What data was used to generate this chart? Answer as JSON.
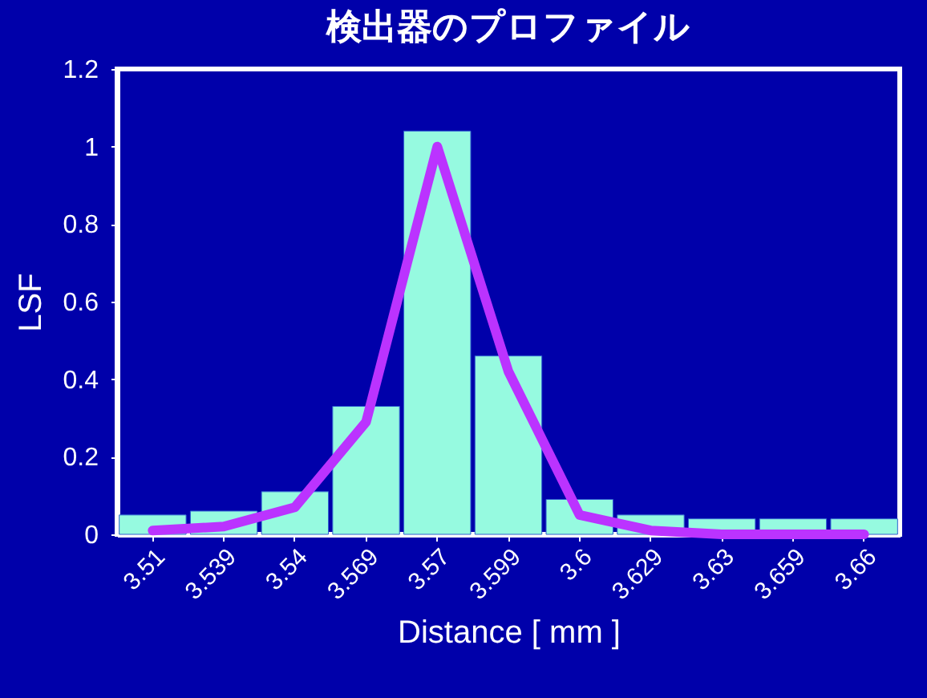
{
  "chart_data": {
    "type": "bar",
    "title": "検出器のプロファイル",
    "xlabel": "Distance [ mm ]",
    "ylabel": "LSF",
    "categories": [
      "3.51",
      "3.539",
      "3.54",
      "3.569",
      "3.57",
      "3.599",
      "3.6",
      "3.629",
      "3.63",
      "3.659",
      "3.66"
    ],
    "series": [
      {
        "color": "#96fae0",
        "values": [
          0.05,
          0.06,
          0.11,
          0.33,
          1.04,
          0.46,
          0.09,
          0.05,
          0.04,
          0.04,
          0.04
        ]
      },
      {
        "type": "line",
        "color": "#bb33ff",
        "values": [
          0.01,
          0.02,
          0.07,
          0.29,
          1.0,
          0.42,
          0.05,
          0.01,
          0.0,
          0.0,
          0.0
        ]
      }
    ],
    "ylim": [
      0,
      1.2
    ],
    "yticks": [
      0,
      0.2,
      0.4,
      0.6,
      0.8,
      1,
      1.2
    ],
    "grid": false,
    "marker": "none",
    "line_style": "solid"
  }
}
